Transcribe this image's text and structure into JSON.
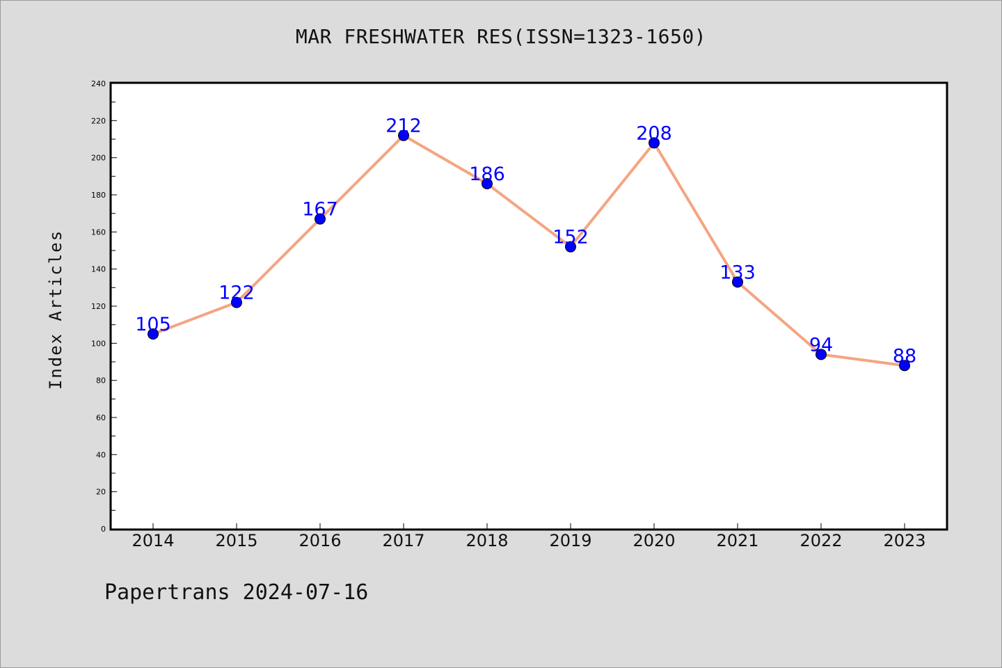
{
  "chart_data": {
    "type": "line",
    "title": "MAR FRESHWATER RES(ISSN=1323-1650)",
    "xlabel": "",
    "ylabel": "Index Articles",
    "categories": [
      "2014",
      "2015",
      "2016",
      "2017",
      "2018",
      "2019",
      "2020",
      "2021",
      "2022",
      "2023"
    ],
    "series": [
      {
        "values": [
          105,
          122,
          167,
          212,
          186,
          152,
          208,
          133,
          94,
          88
        ]
      }
    ],
    "ylim": [
      0,
      240
    ],
    "yticks": [
      0,
      20,
      40,
      60,
      80,
      100,
      120,
      140,
      160,
      180,
      200,
      220,
      240
    ],
    "grid": false,
    "show_data_labels": true,
    "colors": {
      "line": "#f4a582",
      "marker": "#0000ff",
      "data_label": "#0000ff",
      "background": "#dcdcdc",
      "plot_background": "#ffffff"
    }
  },
  "footer": {
    "text": "Papertrans 2024-07-16"
  }
}
